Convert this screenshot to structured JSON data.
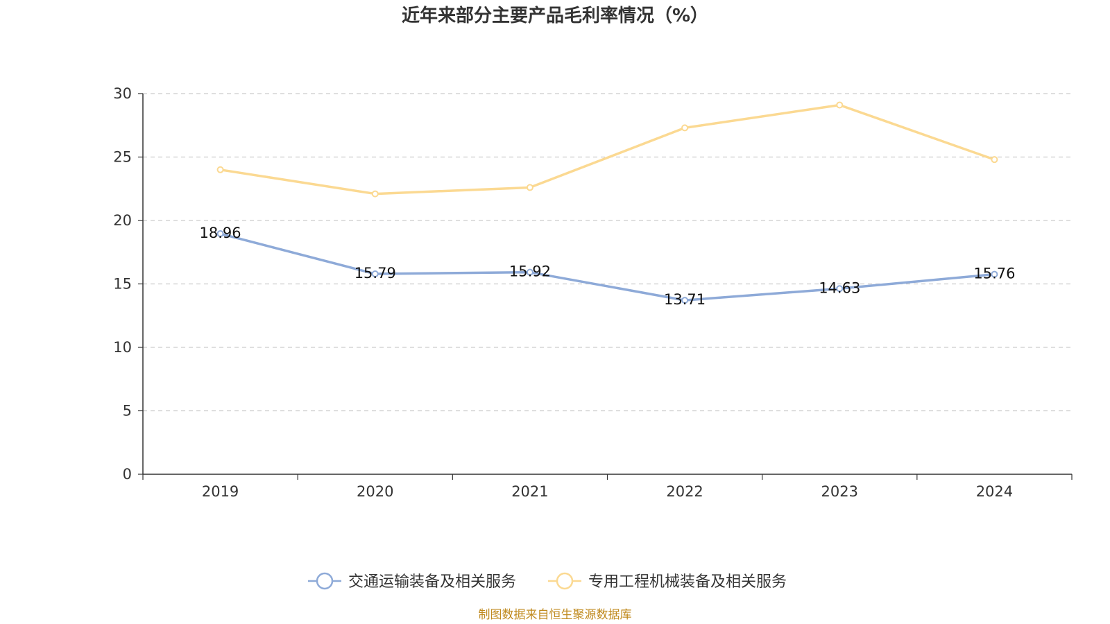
{
  "chart_data": {
    "type": "line",
    "title": "近年来部分主要产品毛利率情况（%）",
    "categories": [
      "2019",
      "2020",
      "2021",
      "2022",
      "2023",
      "2024"
    ],
    "ylim": [
      0,
      30
    ],
    "yticks": [
      "0",
      "5",
      "10",
      "15",
      "20",
      "25",
      "30"
    ],
    "grid": true,
    "legend_position": "bottom-center",
    "series": [
      {
        "name": "交通运输装备及相关服务",
        "color": "#8eaad8",
        "values": [
          18.96,
          15.79,
          15.92,
          13.71,
          14.63,
          15.76
        ],
        "labels": [
          "18.96",
          "15.79",
          "15.92",
          "13.71",
          "14.63",
          "15.76"
        ],
        "show_labels": true
      },
      {
        "name": "专用工程机械装备及相关服务",
        "color": "#fbd992",
        "values": [
          24.0,
          22.1,
          22.6,
          27.3,
          29.1,
          24.8
        ],
        "show_labels": false
      }
    ]
  },
  "source": "制图数据来自恒生聚源数据库"
}
